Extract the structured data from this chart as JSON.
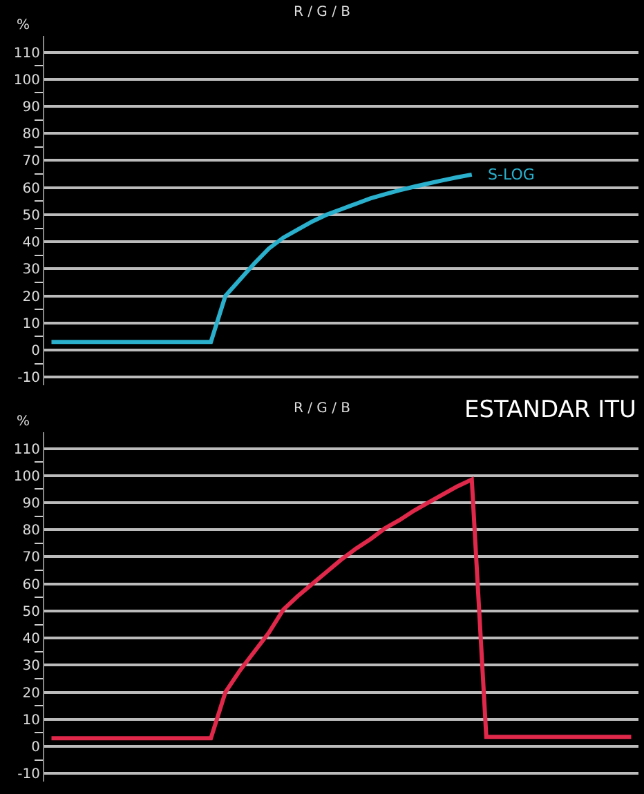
{
  "chart_data": [
    {
      "type": "line",
      "title": "R / G / B",
      "ylabel": "%",
      "ylim": [
        -13,
        116
      ],
      "categories": [
        null,
        null,
        null,
        null,
        null,
        null,
        null,
        null,
        null,
        null,
        null,
        null,
        null,
        null,
        null,
        null,
        null,
        null,
        null,
        null,
        null,
        null,
        null,
        null,
        null,
        null,
        null,
        null,
        null,
        null,
        null,
        null,
        null,
        null,
        null,
        null,
        null,
        null,
        null,
        null,
        null
      ],
      "yticks": [
        -10,
        {
          "value": -5,
          "label": null
        },
        0,
        {
          "value": 5,
          "label": null
        },
        10,
        {
          "value": 15,
          "label": null
        },
        20,
        {
          "value": 25,
          "label": null
        },
        30,
        {
          "value": 35,
          "label": null
        },
        40,
        {
          "value": 45,
          "label": null
        },
        50,
        {
          "value": 55,
          "label": null
        },
        60,
        {
          "value": 65,
          "label": null
        },
        70,
        {
          "value": 75,
          "label": null
        },
        80,
        {
          "value": 85,
          "label": null
        },
        90,
        {
          "value": 95,
          "label": null
        },
        100,
        {
          "value": 105,
          "label": null
        },
        110
      ],
      "tick_labels": "y",
      "grid": "y",
      "marker": "none",
      "line_style": "solid",
      "series": [
        {
          "color": "#2ab0cc",
          "values": [
            3,
            3,
            3,
            3,
            3,
            3,
            3,
            3,
            3,
            3,
            3,
            3,
            20,
            26,
            32,
            37.5,
            41.5,
            44.5,
            47.5,
            50,
            52,
            54,
            56,
            57.5,
            59,
            60.3,
            61.5,
            62.7,
            63.8,
            64.8,
            null,
            null,
            null,
            null,
            null,
            null,
            null,
            null,
            null,
            null,
            null
          ]
        }
      ],
      "annotations": [
        "S-LOG"
      ]
    },
    {
      "type": "line",
      "title": "R / G / B",
      "ylabel": "%",
      "ylim": [
        -13,
        116
      ],
      "categories": [
        null,
        null,
        null,
        null,
        null,
        null,
        null,
        null,
        null,
        null,
        null,
        null,
        null,
        null,
        null,
        null,
        null,
        null,
        null,
        null,
        null,
        null,
        null,
        null,
        null,
        null,
        null,
        null,
        null,
        null,
        null,
        null,
        null,
        null,
        null,
        null,
        null,
        null,
        null,
        null,
        null
      ],
      "yticks": [
        -10,
        {
          "value": -5,
          "label": null
        },
        0,
        {
          "value": 5,
          "label": null
        },
        10,
        {
          "value": 15,
          "label": null
        },
        20,
        {
          "value": 25,
          "label": null
        },
        30,
        {
          "value": 35,
          "label": null
        },
        40,
        {
          "value": 45,
          "label": null
        },
        50,
        {
          "value": 55,
          "label": null
        },
        60,
        {
          "value": 65,
          "label": null
        },
        70,
        {
          "value": 75,
          "label": null
        },
        80,
        {
          "value": 85,
          "label": null
        },
        90,
        {
          "value": 95,
          "label": null
        },
        100,
        {
          "value": 105,
          "label": null
        },
        110
      ],
      "tick_labels": "y",
      "grid": "y",
      "marker": "none",
      "line_style": "solid",
      "series": [
        {
          "color": "#e0284a",
          "values": [
            3,
            3,
            3,
            3,
            3,
            3,
            3,
            3,
            3,
            3,
            3,
            3,
            20,
            28,
            35,
            42,
            50.5,
            55.5,
            60,
            64.5,
            69,
            73,
            76.5,
            80.5,
            83.5,
            87,
            90,
            93,
            96,
            98.5,
            3.5,
            3.5,
            3.5,
            3.5,
            3.5,
            3.5,
            3.5,
            3.5,
            3.5,
            3.5,
            3.5
          ]
        }
      ],
      "annotations": [
        "ESTANDAR ITU"
      ]
    }
  ]
}
